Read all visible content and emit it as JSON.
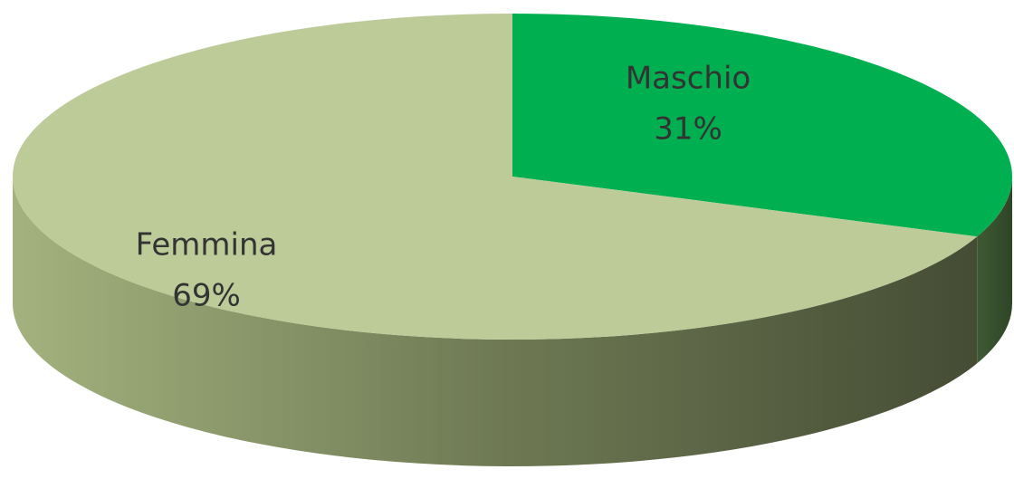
{
  "chart_data": {
    "type": "pie3d",
    "categories": [
      "Maschio",
      "Femmina"
    ],
    "values": [
      31,
      69
    ],
    "value_labels": [
      "31%",
      "69%"
    ],
    "colors": [
      "#00b050",
      "#bccb98"
    ]
  }
}
